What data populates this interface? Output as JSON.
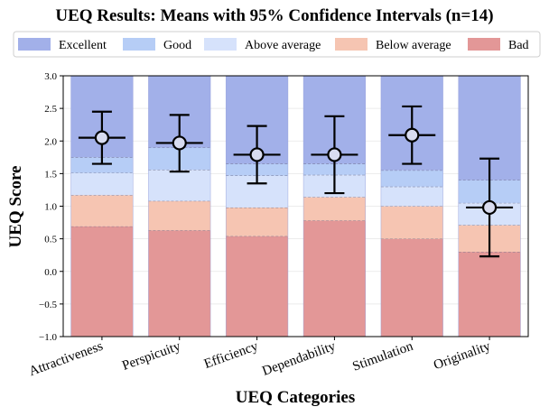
{
  "chart_data": {
    "type": "bar",
    "title": "UEQ Results: Means with 95% Confidence Intervals (n=14)",
    "xlabel": "UEQ Categories",
    "ylabel": "UEQ Score",
    "ylim": [
      -1.0,
      3.0
    ],
    "yticks": [
      -1.0,
      -0.5,
      0.0,
      0.5,
      1.0,
      1.5,
      2.0,
      2.5,
      3.0
    ],
    "ytick_labels": [
      "−1.0",
      "−0.5",
      "0.0",
      "0.5",
      "1.0",
      "1.5",
      "2.0",
      "2.5",
      "3.0"
    ],
    "grid": true,
    "legend_position": "top",
    "categories": [
      "Attractiveness",
      "Perspicuity",
      "Efficiency",
      "Dependability",
      "Stimulation",
      "Originality"
    ],
    "benchmark_bands": [
      {
        "name": "Bad",
        "color": "#e39797",
        "upper": [
          0.69,
          0.63,
          0.54,
          0.78,
          0.5,
          0.3
        ]
      },
      {
        "name": "Below average",
        "color": "#f6c5b2",
        "upper": [
          1.17,
          1.08,
          0.98,
          1.14,
          1.0,
          0.71
        ]
      },
      {
        "name": "Above average",
        "color": "#d6e2fb",
        "upper": [
          1.51,
          1.56,
          1.47,
          1.48,
          1.3,
          1.05
        ]
      },
      {
        "name": "Good",
        "color": "#b6cdf6",
        "upper": [
          1.75,
          1.9,
          1.65,
          1.65,
          1.55,
          1.4
        ]
      },
      {
        "name": "Excellent",
        "color": "#a2b0e9",
        "upper": [
          3.0,
          3.0,
          3.0,
          3.0,
          3.0,
          3.0
        ]
      }
    ],
    "legend": [
      "Excellent",
      "Good",
      "Above average",
      "Below average",
      "Bad"
    ],
    "series": [
      {
        "name": "Mean",
        "values": [
          2.05,
          1.97,
          1.79,
          1.79,
          2.09,
          0.98
        ],
        "ci_low": [
          1.65,
          1.53,
          1.35,
          1.2,
          1.65,
          0.23
        ],
        "ci_high": [
          2.45,
          2.4,
          2.23,
          2.38,
          2.53,
          1.73
        ]
      }
    ]
  }
}
